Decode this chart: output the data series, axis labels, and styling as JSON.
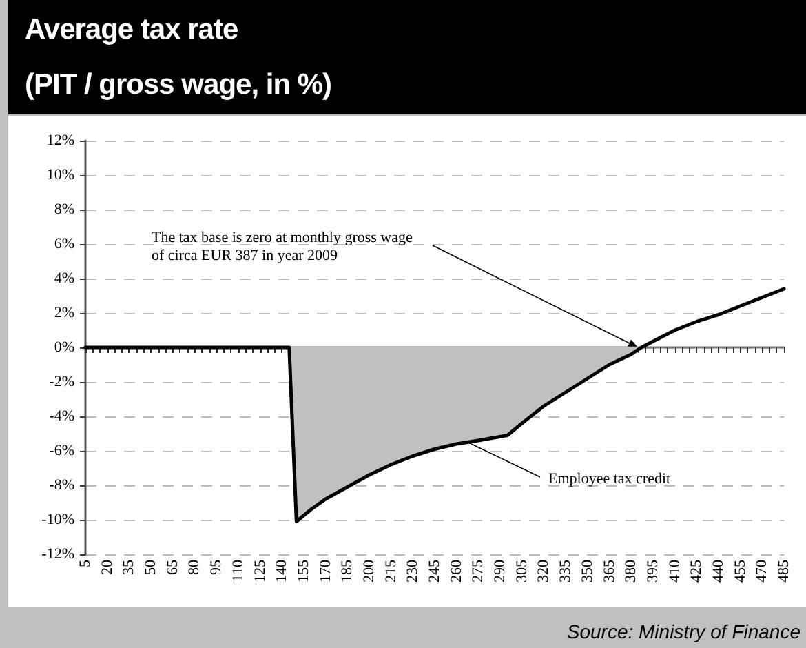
{
  "chart_data": {
    "type": "line",
    "title": "Average tax rate",
    "subtitle": "(PIT / gross wage, in %)",
    "series": [
      {
        "type": "area",
        "color": "#c0c0c0",
        "x": [
          145,
          150,
          160,
          170,
          185,
          200,
          215,
          230,
          245,
          260,
          275,
          295,
          305,
          320,
          335,
          350,
          365,
          380,
          387
        ],
        "values": [
          0,
          -10.1,
          -9.4,
          -8.8,
          -8.1,
          -7.4,
          -6.8,
          -6.3,
          -5.9,
          -5.6,
          -5.4,
          -5.1,
          -4.4,
          -3.4,
          -2.6,
          -1.8,
          -1.0,
          -0.4,
          0
        ]
      },
      {
        "color": "#000000",
        "x": [
          5,
          145,
          150,
          160,
          170,
          185,
          200,
          215,
          230,
          245,
          260,
          275,
          295,
          305,
          320,
          335,
          350,
          365,
          380,
          387,
          395,
          410,
          425,
          440,
          455,
          470,
          485
        ],
        "values": [
          0,
          0,
          -10.1,
          -9.4,
          -8.8,
          -8.1,
          -7.4,
          -6.8,
          -6.3,
          -5.9,
          -5.6,
          -5.4,
          -5.1,
          -4.4,
          -3.4,
          -2.6,
          -1.8,
          -1.0,
          -0.4,
          0,
          0.35,
          1.0,
          1.5,
          1.9,
          2.4,
          2.9,
          3.4
        ]
      }
    ],
    "xlim": [
      5,
      485
    ],
    "xticks": [
      5,
      {
        "value": 10,
        "label": null
      },
      {
        "value": 15,
        "label": null
      },
      20,
      {
        "value": 25,
        "label": null
      },
      {
        "value": 30,
        "label": null
      },
      35,
      {
        "value": 40,
        "label": null
      },
      {
        "value": 45,
        "label": null
      },
      50,
      {
        "value": 55,
        "label": null
      },
      {
        "value": 60,
        "label": null
      },
      65,
      {
        "value": 70,
        "label": null
      },
      {
        "value": 75,
        "label": null
      },
      80,
      {
        "value": 85,
        "label": null
      },
      {
        "value": 90,
        "label": null
      },
      95,
      {
        "value": 100,
        "label": null
      },
      {
        "value": 105,
        "label": null
      },
      110,
      {
        "value": 115,
        "label": null
      },
      {
        "value": 120,
        "label": null
      },
      125,
      {
        "value": 130,
        "label": null
      },
      {
        "value": 135,
        "label": null
      },
      140,
      {
        "value": 145,
        "label": null
      },
      {
        "value": 150,
        "label": null
      },
      155,
      {
        "value": 160,
        "label": null
      },
      {
        "value": 165,
        "label": null
      },
      170,
      {
        "value": 175,
        "label": null
      },
      {
        "value": 180,
        "label": null
      },
      185,
      {
        "value": 190,
        "label": null
      },
      {
        "value": 195,
        "label": null
      },
      200,
      {
        "value": 205,
        "label": null
      },
      {
        "value": 210,
        "label": null
      },
      215,
      {
        "value": 220,
        "label": null
      },
      {
        "value": 225,
        "label": null
      },
      230,
      {
        "value": 235,
        "label": null
      },
      {
        "value": 240,
        "label": null
      },
      245,
      {
        "value": 250,
        "label": null
      },
      {
        "value": 255,
        "label": null
      },
      260,
      {
        "value": 265,
        "label": null
      },
      {
        "value": 270,
        "label": null
      },
      275,
      {
        "value": 280,
        "label": null
      },
      {
        "value": 285,
        "label": null
      },
      290,
      {
        "value": 295,
        "label": null
      },
      {
        "value": 300,
        "label": null
      },
      305,
      {
        "value": 310,
        "label": null
      },
      {
        "value": 315,
        "label": null
      },
      320,
      {
        "value": 325,
        "label": null
      },
      {
        "value": 330,
        "label": null
      },
      335,
      {
        "value": 340,
        "label": null
      },
      {
        "value": 345,
        "label": null
      },
      350,
      {
        "value": 355,
        "label": null
      },
      {
        "value": 360,
        "label": null
      },
      365,
      {
        "value": 370,
        "label": null
      },
      {
        "value": 375,
        "label": null
      },
      380,
      {
        "value": 385,
        "label": null
      },
      {
        "value": 390,
        "label": null
      },
      395,
      {
        "value": 400,
        "label": null
      },
      {
        "value": 405,
        "label": null
      },
      410,
      {
        "value": 415,
        "label": null
      },
      {
        "value": 420,
        "label": null
      },
      425,
      {
        "value": 430,
        "label": null
      },
      {
        "value": 435,
        "label": null
      },
      440,
      {
        "value": 445,
        "label": null
      },
      {
        "value": 450,
        "label": null
      },
      455,
      {
        "value": 460,
        "label": null
      },
      {
        "value": 465,
        "label": null
      },
      470,
      {
        "value": 475,
        "label": null
      },
      {
        "value": 480,
        "label": null
      },
      485
    ],
    "ylim": [
      -12,
      12
    ],
    "yticks": [
      {
        "value": -12,
        "label": "-12%"
      },
      {
        "value": -10,
        "label": "-10%"
      },
      {
        "value": -8,
        "label": "-8%"
      },
      {
        "value": -6,
        "label": "-6%"
      },
      {
        "value": -4,
        "label": "-4%"
      },
      {
        "value": -2,
        "label": "-2%"
      },
      {
        "value": 0,
        "label": "0%"
      },
      {
        "value": 2,
        "label": "2%"
      },
      {
        "value": 4,
        "label": "4%"
      },
      {
        "value": 6,
        "label": "6%"
      },
      {
        "value": 8,
        "label": "8%"
      },
      {
        "value": 10,
        "label": "10%"
      },
      {
        "value": 12,
        "label": "12%"
      }
    ],
    "grid": "y",
    "marker": "none",
    "line_style": "solid",
    "annotations": [
      "The tax base is zero at monthly gross wage of circa EUR 387 in year 2009",
      "Employee tax credit",
      "Source: Ministry of Finance"
    ]
  }
}
